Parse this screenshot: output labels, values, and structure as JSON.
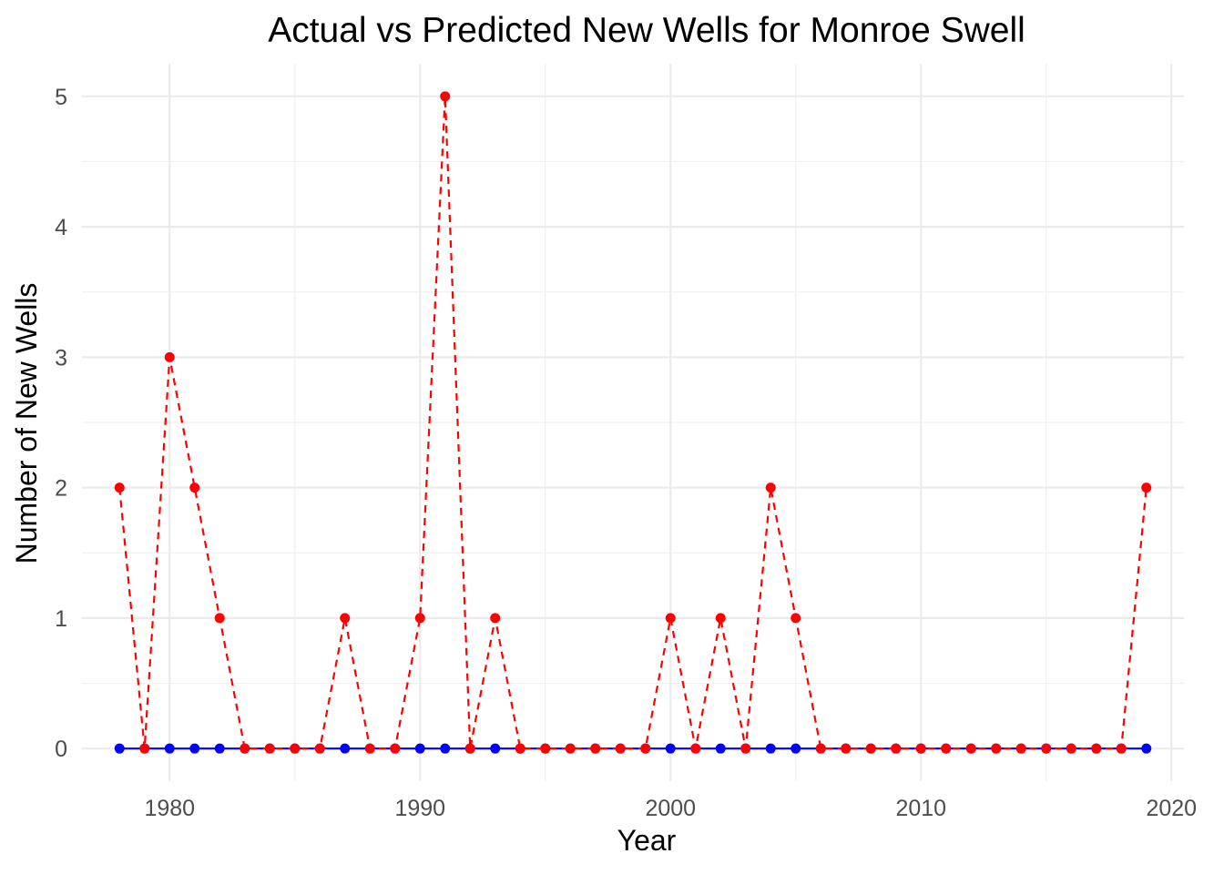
{
  "chart_data": {
    "type": "line",
    "title": "Actual vs Predicted New Wells for Monroe Swell",
    "xlabel": "Year",
    "ylabel": "Number of New Wells",
    "xlim": [
      1976.5,
      2020.5
    ],
    "ylim": [
      -0.25,
      5.25
    ],
    "x_ticks": [
      1980,
      1990,
      2000,
      2010,
      2020
    ],
    "y_ticks": [
      0,
      1,
      2,
      3,
      4,
      5
    ],
    "grid": true,
    "legend": "none",
    "x": [
      1978,
      1979,
      1980,
      1981,
      1982,
      1983,
      1984,
      1985,
      1986,
      1987,
      1988,
      1989,
      1990,
      1991,
      1992,
      1993,
      1994,
      1995,
      1996,
      1997,
      1998,
      1999,
      2000,
      2001,
      2002,
      2003,
      2004,
      2005,
      2006,
      2007,
      2008,
      2009,
      2010,
      2011,
      2012,
      2013,
      2014,
      2015,
      2016,
      2017,
      2018,
      2019
    ],
    "series": [
      {
        "color": "#0000ff",
        "line_style": "solid",
        "values": [
          0,
          0,
          0,
          0,
          0,
          0,
          0,
          0,
          0,
          0,
          0,
          0,
          0,
          0,
          0,
          0,
          0,
          0,
          0,
          0,
          0,
          0,
          0,
          0,
          0,
          0,
          0,
          0,
          0,
          0,
          0,
          0,
          0,
          0,
          0,
          0,
          0,
          0,
          0,
          0,
          0,
          0
        ]
      },
      {
        "color": "#ff0000",
        "line_style": "dashed",
        "values": [
          2,
          0,
          3,
          2,
          1,
          0,
          0,
          0,
          0,
          1,
          0,
          0,
          1,
          5,
          0,
          1,
          0,
          0,
          0,
          0,
          0,
          0,
          1,
          0,
          1,
          0,
          2,
          1,
          0,
          0,
          0,
          0,
          0,
          0,
          0,
          0,
          0,
          0,
          0,
          0,
          0,
          2
        ]
      }
    ]
  }
}
